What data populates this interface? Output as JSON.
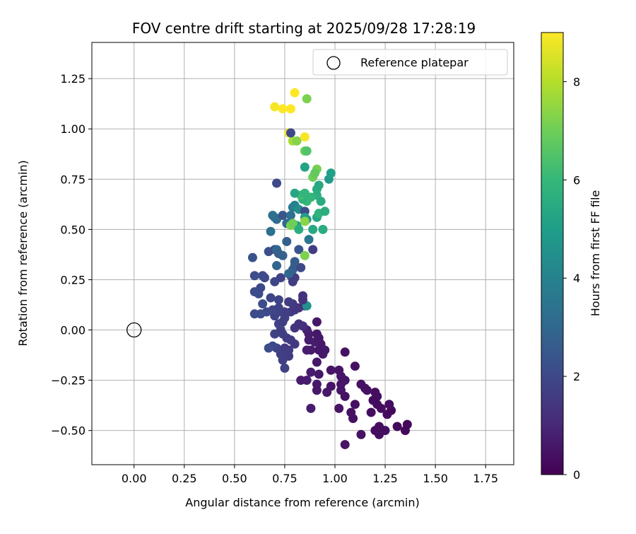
{
  "chart_data": {
    "type": "scatter",
    "title": "FOV centre drift starting at 2025/09/28 17:28:19",
    "xlabel": "Angular distance from reference (arcmin)",
    "ylabel": "Rotation from reference (arcmin)",
    "xlim": [
      -0.21,
      1.89
    ],
    "ylim": [
      -0.67,
      1.43
    ],
    "xticks": [
      0.0,
      0.25,
      0.5,
      0.75,
      1.0,
      1.25,
      1.5,
      1.75
    ],
    "xtick_labels": [
      "0.00",
      "0.25",
      "0.50",
      "0.75",
      "1.00",
      "1.25",
      "1.50",
      "1.75"
    ],
    "yticks": [
      -0.5,
      -0.25,
      0.0,
      0.25,
      0.5,
      0.75,
      1.0,
      1.25
    ],
    "ytick_labels": [
      "−0.50",
      "−0.25",
      "0.00",
      "0.25",
      "0.50",
      "0.75",
      "1.00",
      "1.25"
    ],
    "grid": true,
    "legend": {
      "label": "Reference platepar",
      "placement": "top-right"
    },
    "reference_point": {
      "x": 0.0,
      "y": 0.0,
      "label": "Reference platepar"
    },
    "colorbar": {
      "label": "Hours from first FF file",
      "range": [
        0,
        9
      ],
      "ticks": [
        0,
        2,
        4,
        6,
        8
      ],
      "tick_labels": [
        "0",
        "2",
        "4",
        "6",
        "8"
      ],
      "colormap": "viridis"
    },
    "colormap_stops": [
      "#440154",
      "#482878",
      "#3e4989",
      "#31688e",
      "#26828e",
      "#1f9e89",
      "#35b779",
      "#6ece58",
      "#b5de2b",
      "#fde725"
    ],
    "points": [
      {
        "x": 1.05,
        "y": -0.57,
        "h": 0.5
      },
      {
        "x": 1.22,
        "y": -0.52,
        "h": 0.3
      },
      {
        "x": 1.13,
        "y": -0.52,
        "h": 0.4
      },
      {
        "x": 1.2,
        "y": -0.5,
        "h": 0.3
      },
      {
        "x": 1.25,
        "y": -0.5,
        "h": 0.3
      },
      {
        "x": 1.35,
        "y": -0.5,
        "h": 0.2
      },
      {
        "x": 1.31,
        "y": -0.48,
        "h": 0.2
      },
      {
        "x": 1.36,
        "y": -0.47,
        "h": 0.2
      },
      {
        "x": 1.22,
        "y": -0.48,
        "h": 0.3
      },
      {
        "x": 1.09,
        "y": -0.44,
        "h": 0.4
      },
      {
        "x": 1.08,
        "y": -0.41,
        "h": 0.4
      },
      {
        "x": 1.18,
        "y": -0.41,
        "h": 0.3
      },
      {
        "x": 1.26,
        "y": -0.42,
        "h": 0.3
      },
      {
        "x": 1.28,
        "y": -0.4,
        "h": 0.2
      },
      {
        "x": 1.23,
        "y": -0.39,
        "h": 0.3
      },
      {
        "x": 1.27,
        "y": -0.37,
        "h": 0.3
      },
      {
        "x": 1.21,
        "y": -0.37,
        "h": 0.3
      },
      {
        "x": 1.19,
        "y": -0.35,
        "h": 0.3
      },
      {
        "x": 1.21,
        "y": -0.33,
        "h": 0.3
      },
      {
        "x": 1.2,
        "y": -0.31,
        "h": 0.3
      },
      {
        "x": 1.1,
        "y": -0.37,
        "h": 0.4
      },
      {
        "x": 1.02,
        "y": -0.39,
        "h": 0.5
      },
      {
        "x": 0.88,
        "y": -0.39,
        "h": 0.7
      },
      {
        "x": 1.05,
        "y": -0.33,
        "h": 0.4
      },
      {
        "x": 1.15,
        "y": -0.29,
        "h": 0.4
      },
      {
        "x": 1.16,
        "y": -0.3,
        "h": 0.4
      },
      {
        "x": 1.13,
        "y": -0.27,
        "h": 0.4
      },
      {
        "x": 1.03,
        "y": -0.3,
        "h": 0.5
      },
      {
        "x": 1.03,
        "y": -0.27,
        "h": 0.5
      },
      {
        "x": 1.05,
        "y": -0.25,
        "h": 0.5
      },
      {
        "x": 0.98,
        "y": -0.28,
        "h": 0.5
      },
      {
        "x": 0.96,
        "y": -0.31,
        "h": 0.6
      },
      {
        "x": 0.91,
        "y": -0.3,
        "h": 0.6
      },
      {
        "x": 0.91,
        "y": -0.27,
        "h": 0.6
      },
      {
        "x": 0.86,
        "y": -0.25,
        "h": 0.7
      },
      {
        "x": 0.83,
        "y": -0.25,
        "h": 0.7
      },
      {
        "x": 0.92,
        "y": -0.22,
        "h": 0.6
      },
      {
        "x": 0.88,
        "y": -0.21,
        "h": 0.7
      },
      {
        "x": 0.98,
        "y": -0.2,
        "h": 0.5
      },
      {
        "x": 1.02,
        "y": -0.2,
        "h": 0.5
      },
      {
        "x": 1.03,
        "y": -0.23,
        "h": 0.5
      },
      {
        "x": 1.1,
        "y": -0.18,
        "h": 0.4
      },
      {
        "x": 1.05,
        "y": -0.11,
        "h": 0.4
      },
      {
        "x": 0.91,
        "y": -0.16,
        "h": 0.6
      },
      {
        "x": 0.94,
        "y": -0.12,
        "h": 0.6
      },
      {
        "x": 0.92,
        "y": -0.1,
        "h": 0.6
      },
      {
        "x": 0.95,
        "y": -0.1,
        "h": 0.6
      },
      {
        "x": 0.88,
        "y": -0.1,
        "h": 0.7
      },
      {
        "x": 0.86,
        "y": -0.1,
        "h": 0.7
      },
      {
        "x": 0.93,
        "y": -0.07,
        "h": 0.6
      },
      {
        "x": 0.9,
        "y": -0.06,
        "h": 0.7
      },
      {
        "x": 0.87,
        "y": -0.05,
        "h": 0.7
      },
      {
        "x": 0.92,
        "y": -0.04,
        "h": 0.6
      },
      {
        "x": 0.91,
        "y": -0.02,
        "h": 0.6
      },
      {
        "x": 0.87,
        "y": -0.02,
        "h": 0.7
      },
      {
        "x": 0.91,
        "y": 0.04,
        "h": 0.6
      },
      {
        "x": 0.86,
        "y": 0.0,
        "h": 0.8
      },
      {
        "x": 0.84,
        "y": 0.02,
        "h": 1.2
      },
      {
        "x": 0.8,
        "y": 0.01,
        "h": 1.4
      },
      {
        "x": 0.82,
        "y": 0.03,
        "h": 1.3
      },
      {
        "x": 0.78,
        "y": -0.05,
        "h": 1.5
      },
      {
        "x": 0.8,
        "y": -0.07,
        "h": 1.5
      },
      {
        "x": 0.77,
        "y": -0.1,
        "h": 1.6
      },
      {
        "x": 0.75,
        "y": -0.09,
        "h": 1.6
      },
      {
        "x": 0.77,
        "y": -0.13,
        "h": 1.6
      },
      {
        "x": 0.73,
        "y": -0.12,
        "h": 1.7
      },
      {
        "x": 0.74,
        "y": -0.15,
        "h": 1.7
      },
      {
        "x": 0.75,
        "y": -0.19,
        "h": 1.8
      },
      {
        "x": 0.71,
        "y": -0.09,
        "h": 1.8
      },
      {
        "x": 0.69,
        "y": -0.08,
        "h": 2.0
      },
      {
        "x": 0.67,
        "y": -0.09,
        "h": 2.1
      },
      {
        "x": 0.7,
        "y": -0.02,
        "h": 1.8
      },
      {
        "x": 0.74,
        "y": -0.02,
        "h": 1.7
      },
      {
        "x": 0.76,
        "y": -0.04,
        "h": 1.6
      },
      {
        "x": 0.73,
        "y": 0.0,
        "h": 1.7
      },
      {
        "x": 0.72,
        "y": 0.03,
        "h": 1.8
      },
      {
        "x": 0.74,
        "y": 0.04,
        "h": 1.7
      },
      {
        "x": 0.75,
        "y": 0.06,
        "h": 1.7
      },
      {
        "x": 0.7,
        "y": 0.07,
        "h": 1.8
      },
      {
        "x": 0.72,
        "y": 0.09,
        "h": 1.8
      },
      {
        "x": 0.75,
        "y": 0.09,
        "h": 1.7
      },
      {
        "x": 0.69,
        "y": 0.1,
        "h": 1.9
      },
      {
        "x": 0.66,
        "y": 0.09,
        "h": 2.0
      },
      {
        "x": 0.63,
        "y": 0.08,
        "h": 2.1
      },
      {
        "x": 0.6,
        "y": 0.08,
        "h": 2.1
      },
      {
        "x": 0.64,
        "y": 0.13,
        "h": 2.1
      },
      {
        "x": 0.72,
        "y": 0.11,
        "h": 1.8
      },
      {
        "x": 0.78,
        "y": 0.09,
        "h": 1.6
      },
      {
        "x": 0.8,
        "y": 0.1,
        "h": 1.5
      },
      {
        "x": 0.82,
        "y": 0.11,
        "h": 1.4
      },
      {
        "x": 0.85,
        "y": 0.12,
        "h": 1.2
      },
      {
        "x": 0.86,
        "y": 0.12,
        "h": 4.5
      },
      {
        "x": 0.84,
        "y": 0.15,
        "h": 1.3
      },
      {
        "x": 0.84,
        "y": 0.17,
        "h": 1.3
      },
      {
        "x": 0.79,
        "y": 0.13,
        "h": 1.5
      },
      {
        "x": 0.77,
        "y": 0.14,
        "h": 1.6
      },
      {
        "x": 0.72,
        "y": 0.15,
        "h": 1.8
      },
      {
        "x": 0.68,
        "y": 0.16,
        "h": 1.9
      },
      {
        "x": 0.62,
        "y": 0.18,
        "h": 2.1
      },
      {
        "x": 0.6,
        "y": 0.19,
        "h": 2.1
      },
      {
        "x": 0.63,
        "y": 0.21,
        "h": 2.0
      },
      {
        "x": 0.7,
        "y": 0.24,
        "h": 1.9
      },
      {
        "x": 0.79,
        "y": 0.24,
        "h": 1.6
      },
      {
        "x": 0.73,
        "y": 0.26,
        "h": 1.8
      },
      {
        "x": 0.78,
        "y": 0.27,
        "h": 1.7
      },
      {
        "x": 0.8,
        "y": 0.26,
        "h": 1.6
      },
      {
        "x": 0.65,
        "y": 0.26,
        "h": 2.0
      },
      {
        "x": 0.64,
        "y": 0.27,
        "h": 2.0
      },
      {
        "x": 0.6,
        "y": 0.27,
        "h": 2.1
      },
      {
        "x": 0.59,
        "y": 0.36,
        "h": 2.3
      },
      {
        "x": 0.67,
        "y": 0.39,
        "h": 2.2
      },
      {
        "x": 0.7,
        "y": 0.4,
        "h": 2.1
      },
      {
        "x": 0.77,
        "y": 0.28,
        "h": 3.0
      },
      {
        "x": 0.79,
        "y": 0.3,
        "h": 2.8
      },
      {
        "x": 0.8,
        "y": 0.32,
        "h": 2.6
      },
      {
        "x": 0.83,
        "y": 0.31,
        "h": 2.0
      },
      {
        "x": 0.8,
        "y": 0.34,
        "h": 2.6
      },
      {
        "x": 0.71,
        "y": 0.32,
        "h": 2.9
      },
      {
        "x": 0.74,
        "y": 0.37,
        "h": 2.8
      },
      {
        "x": 0.71,
        "y": 0.4,
        "h": 3.0
      },
      {
        "x": 0.72,
        "y": 0.38,
        "h": 2.7
      },
      {
        "x": 0.76,
        "y": 0.44,
        "h": 2.7
      },
      {
        "x": 0.82,
        "y": 0.4,
        "h": 2.4
      },
      {
        "x": 0.89,
        "y": 0.4,
        "h": 1.6
      },
      {
        "x": 0.87,
        "y": 0.45,
        "h": 3.5
      },
      {
        "x": 0.76,
        "y": 0.53,
        "h": 3.2
      },
      {
        "x": 0.68,
        "y": 0.49,
        "h": 3.3
      },
      {
        "x": 0.69,
        "y": 0.57,
        "h": 3.4
      },
      {
        "x": 0.7,
        "y": 0.56,
        "h": 3.3
      },
      {
        "x": 0.71,
        "y": 0.55,
        "h": 3.2
      },
      {
        "x": 0.74,
        "y": 0.57,
        "h": 2.4
      },
      {
        "x": 0.78,
        "y": 0.57,
        "h": 3.3
      },
      {
        "x": 0.79,
        "y": 0.61,
        "h": 3.6
      },
      {
        "x": 0.8,
        "y": 0.62,
        "h": 4.0
      },
      {
        "x": 0.82,
        "y": 0.6,
        "h": 4.4
      },
      {
        "x": 0.85,
        "y": 0.59,
        "h": 2.1
      },
      {
        "x": 0.86,
        "y": 0.55,
        "h": 4.7
      },
      {
        "x": 0.85,
        "y": 0.56,
        "h": 5.0
      },
      {
        "x": 0.81,
        "y": 0.52,
        "h": 5.2
      },
      {
        "x": 0.78,
        "y": 0.52,
        "h": 7.2
      },
      {
        "x": 0.79,
        "y": 0.53,
        "h": 7.0
      },
      {
        "x": 0.82,
        "y": 0.5,
        "h": 5.6
      },
      {
        "x": 0.85,
        "y": 0.54,
        "h": 7.4
      },
      {
        "x": 0.89,
        "y": 0.5,
        "h": 5.4
      },
      {
        "x": 0.91,
        "y": 0.56,
        "h": 5.3
      },
      {
        "x": 0.92,
        "y": 0.58,
        "h": 5.8
      },
      {
        "x": 0.95,
        "y": 0.59,
        "h": 5.6
      },
      {
        "x": 0.93,
        "y": 0.64,
        "h": 5.5
      },
      {
        "x": 0.91,
        "y": 0.67,
        "h": 5.7
      },
      {
        "x": 0.88,
        "y": 0.66,
        "h": 5.9
      },
      {
        "x": 0.86,
        "y": 0.64,
        "h": 6.0
      },
      {
        "x": 0.84,
        "y": 0.65,
        "h": 5.8
      },
      {
        "x": 0.83,
        "y": 0.67,
        "h": 6.2
      },
      {
        "x": 0.85,
        "y": 0.68,
        "h": 5.9
      },
      {
        "x": 0.8,
        "y": 0.68,
        "h": 5.3
      },
      {
        "x": 0.91,
        "y": 0.7,
        "h": 5.6
      },
      {
        "x": 0.92,
        "y": 0.72,
        "h": 5.4
      },
      {
        "x": 0.89,
        "y": 0.76,
        "h": 7.0
      },
      {
        "x": 0.91,
        "y": 0.8,
        "h": 7.1
      },
      {
        "x": 0.9,
        "y": 0.78,
        "h": 6.8
      },
      {
        "x": 0.97,
        "y": 0.75,
        "h": 4.9
      },
      {
        "x": 0.98,
        "y": 0.78,
        "h": 5.1
      },
      {
        "x": 0.94,
        "y": 0.5,
        "h": 5.5
      },
      {
        "x": 0.85,
        "y": 0.81,
        "h": 5.2
      },
      {
        "x": 0.71,
        "y": 0.73,
        "h": 2.0
      },
      {
        "x": 0.85,
        "y": 0.37,
        "h": 7.2
      },
      {
        "x": 0.85,
        "y": 0.89,
        "h": 7.0
      },
      {
        "x": 0.86,
        "y": 0.89,
        "h": 6.5
      },
      {
        "x": 0.79,
        "y": 0.94,
        "h": 7.8
      },
      {
        "x": 0.81,
        "y": 0.94,
        "h": 7.3
      },
      {
        "x": 0.77,
        "y": 0.98,
        "h": 8.8
      },
      {
        "x": 0.78,
        "y": 0.98,
        "h": 2.0
      },
      {
        "x": 0.85,
        "y": 0.96,
        "h": 8.9
      },
      {
        "x": 0.7,
        "y": 1.11,
        "h": 8.9
      },
      {
        "x": 0.74,
        "y": 1.1,
        "h": 9.0
      },
      {
        "x": 0.78,
        "y": 1.1,
        "h": 9.0
      },
      {
        "x": 0.8,
        "y": 1.18,
        "h": 9.0
      },
      {
        "x": 0.86,
        "y": 1.15,
        "h": 7.2
      }
    ]
  }
}
